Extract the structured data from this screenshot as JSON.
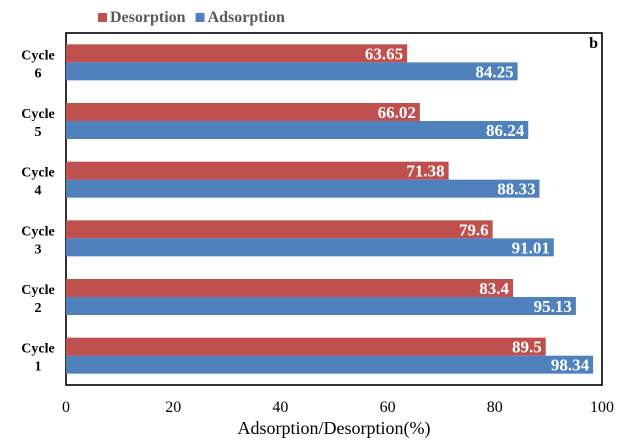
{
  "chart_data": {
    "type": "bar",
    "orientation": "horizontal",
    "panel_label": "b",
    "categories": [
      [
        "Cycle",
        "1"
      ],
      [
        "Cycle",
        "2"
      ],
      [
        "Cycle",
        "3"
      ],
      [
        "Cycle",
        "4"
      ],
      [
        "Cycle",
        "5"
      ],
      [
        "Cycle",
        "6"
      ]
    ],
    "series": [
      {
        "name": "Desorption",
        "color": "#c0504d",
        "values": [
          89.5,
          83.4,
          79.6,
          71.38,
          66.02,
          63.65
        ],
        "labels": [
          "89.5",
          "83.4",
          "79.6",
          "71.38",
          "66.02",
          "63.65"
        ]
      },
      {
        "name": "Adsorption",
        "color": "#4f81bd",
        "values": [
          98.34,
          95.13,
          91.01,
          88.33,
          86.24,
          84.25
        ],
        "labels": [
          "98.34",
          "95.13",
          "91.01",
          "88.33",
          "86.24",
          "84.25"
        ]
      }
    ],
    "xlabel": "Adsorption/Desorption(%)",
    "ylabel": "",
    "xlim": [
      0,
      100
    ],
    "xticks": [
      "0",
      "20",
      "40",
      "60",
      "80",
      "100"
    ],
    "grid": false,
    "legend": "top"
  }
}
